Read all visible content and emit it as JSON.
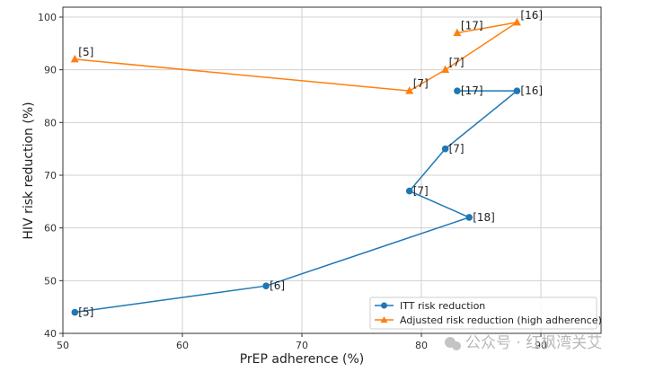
{
  "chart_data": {
    "type": "line",
    "title": "",
    "xlabel": "PrEP adherence (%)",
    "ylabel": "HIV risk reduction (%)",
    "xlim": [
      50,
      92
    ],
    "ylim": [
      40,
      102
    ],
    "xticks": [
      50,
      60,
      70,
      80,
      90
    ],
    "yticks": [
      40,
      50,
      60,
      70,
      80,
      90,
      100
    ],
    "grid": true,
    "legend_position": "bottom-right",
    "series": [
      {
        "name": "ITT risk reduction",
        "color": "#1f77b4",
        "marker": "circle",
        "points": [
          {
            "x": 51,
            "y": 44,
            "label": "[5]"
          },
          {
            "x": 67,
            "y": 49,
            "label": "[6]"
          },
          {
            "x": 84,
            "y": 62,
            "label": "[18]"
          },
          {
            "x": 79,
            "y": 67,
            "label": "[7]"
          },
          {
            "x": 82,
            "y": 75,
            "label": "[7]"
          },
          {
            "x": 88,
            "y": 86,
            "label": "[16]"
          },
          {
            "x": 83,
            "y": 86,
            "label": "[17]"
          }
        ]
      },
      {
        "name": "Adjusted risk reduction (high adherence)",
        "color": "#ff7f0e",
        "marker": "triangle",
        "points": [
          {
            "x": 51,
            "y": 92,
            "label": "[5]"
          },
          {
            "x": 79,
            "y": 86,
            "label": "[7]"
          },
          {
            "x": 82,
            "y": 90,
            "label": "[7]"
          },
          {
            "x": 88,
            "y": 99,
            "label": "[16]"
          },
          {
            "x": 83,
            "y": 97,
            "label": "[17]"
          }
        ]
      }
    ]
  },
  "watermark": "公众号 · 红枫湾关艾"
}
